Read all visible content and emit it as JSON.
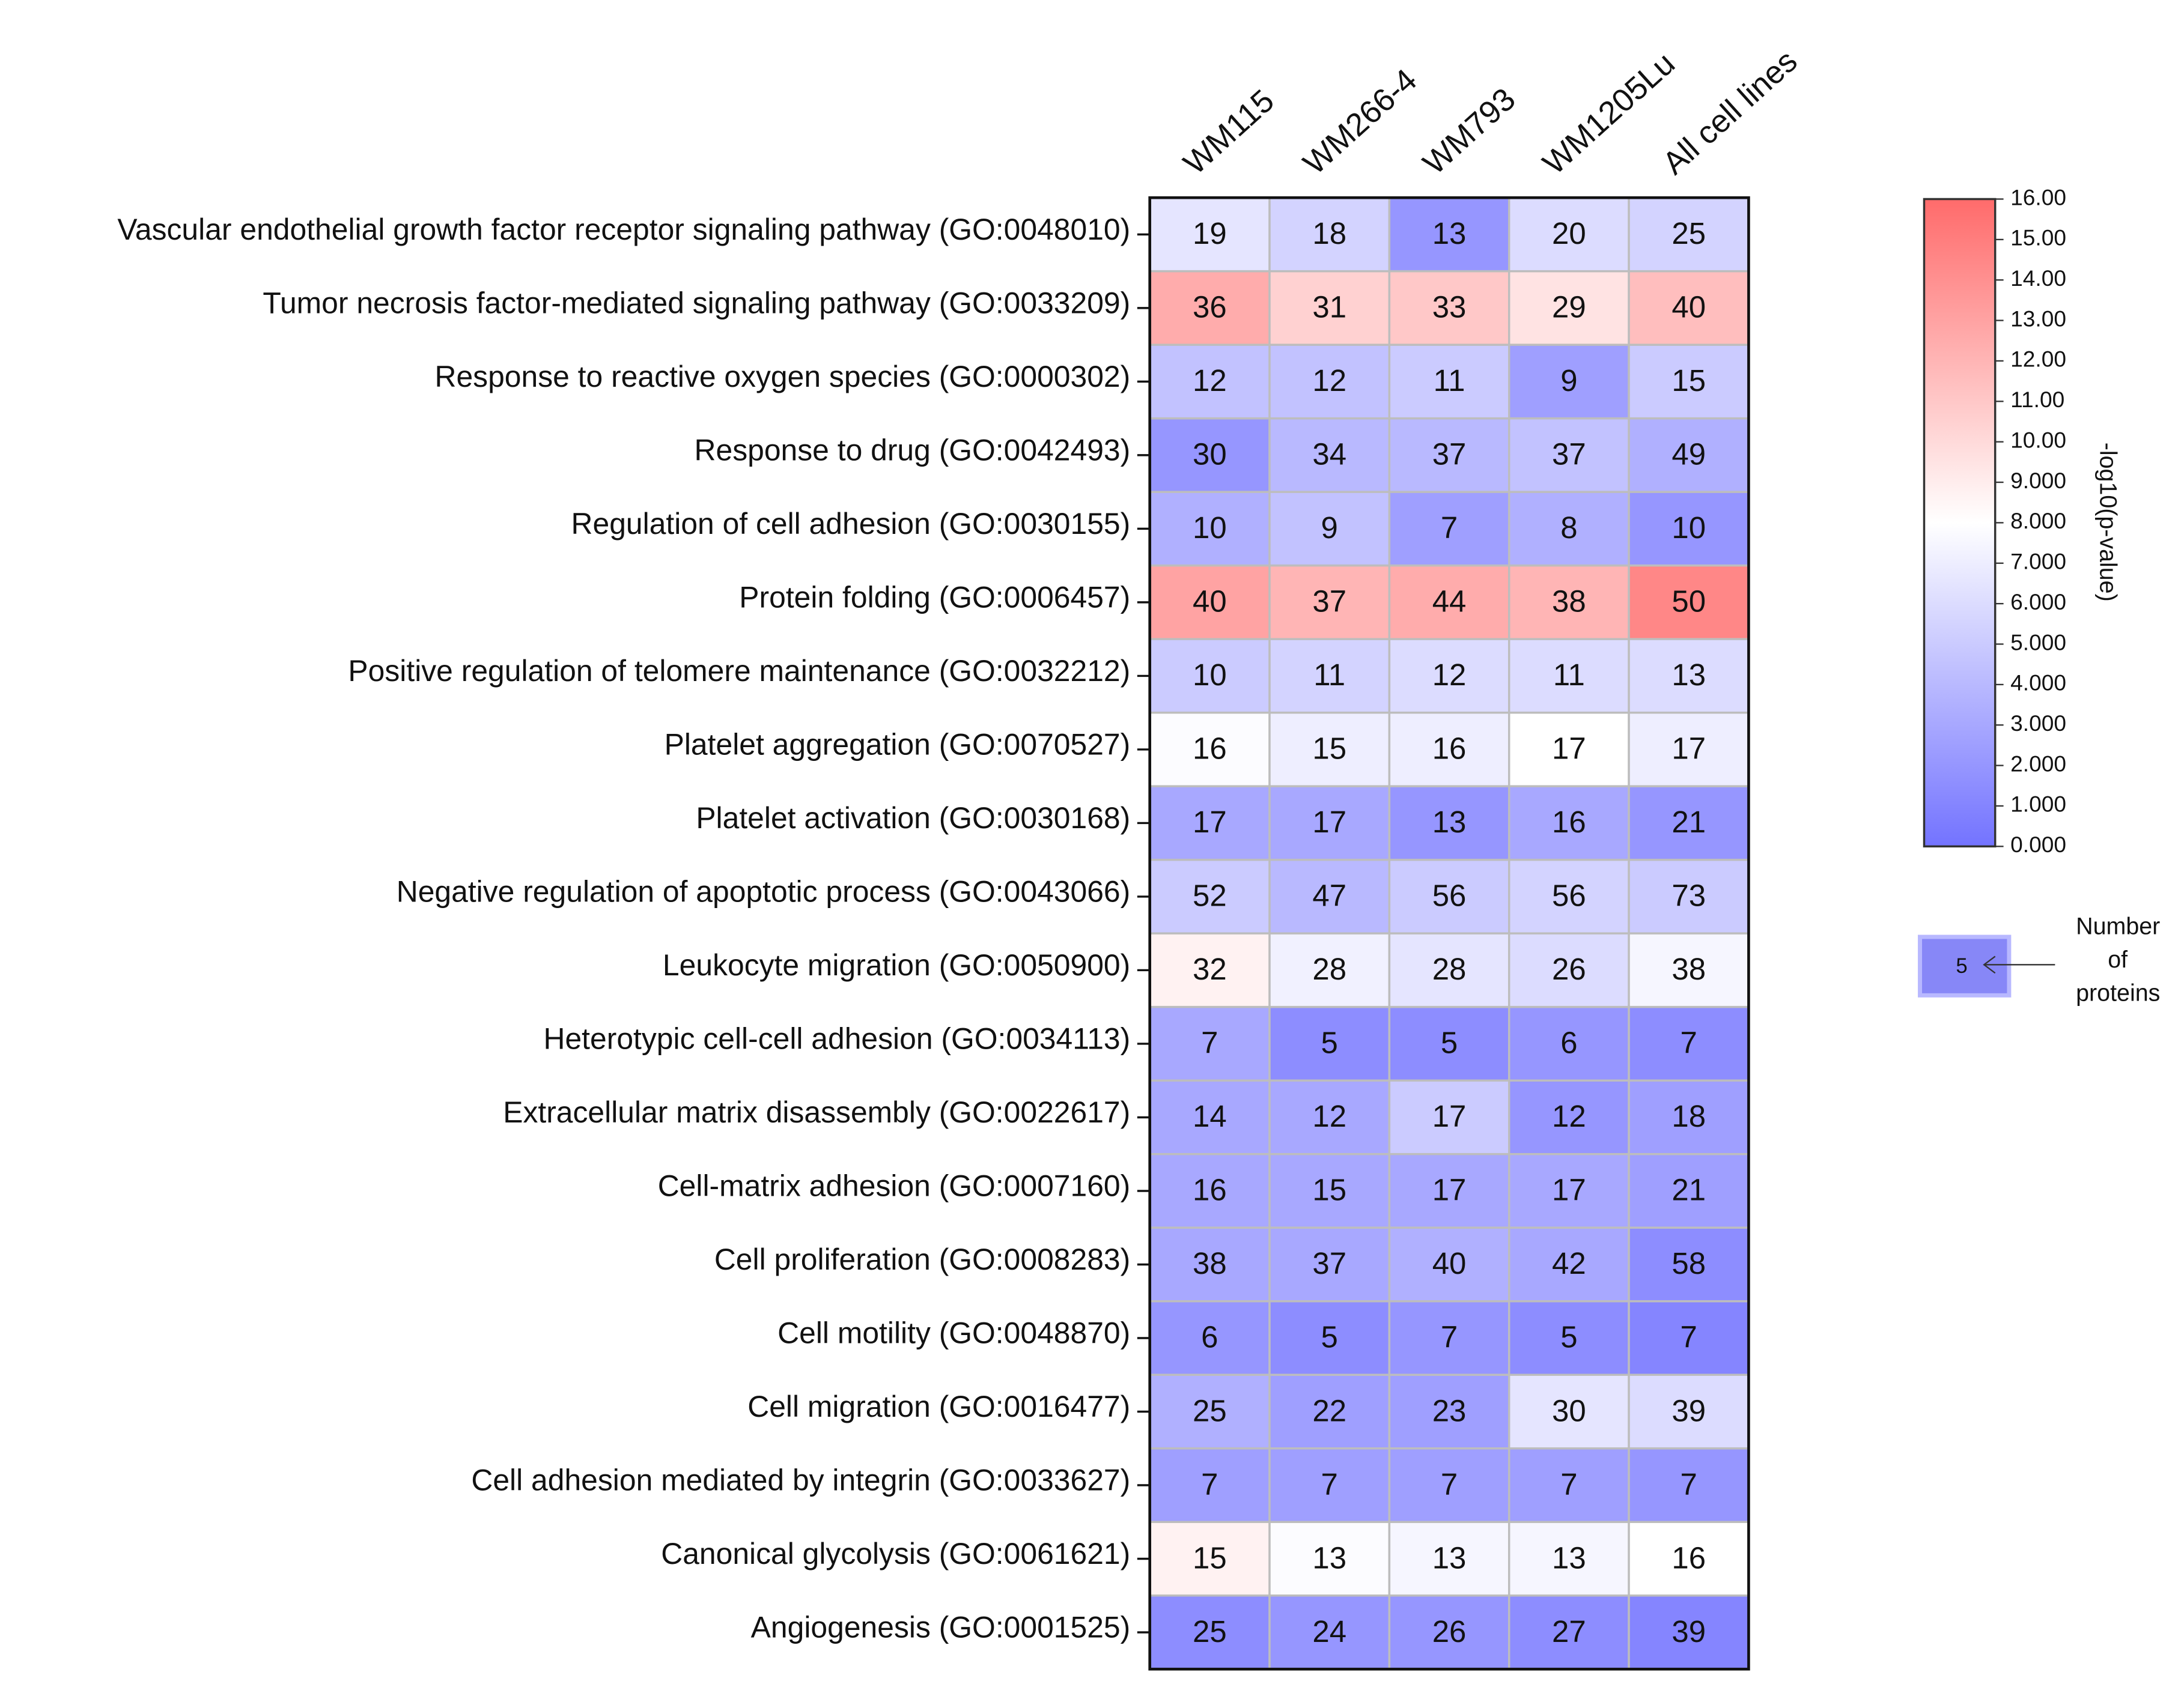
{
  "chart_data": {
    "type": "heatmap",
    "columns": [
      "WM115",
      "WM266-4",
      "WM793",
      "WM1205Lu",
      "All cell lines"
    ],
    "rows": [
      "Vascular endothelial growth factor receptor signaling pathway (GO:0048010)",
      "Tumor necrosis factor-mediated signaling pathway (GO:0033209)",
      "Response to reactive oxygen species (GO:0000302)",
      "Response to drug (GO:0042493)",
      "Regulation of cell adhesion (GO:0030155)",
      "Protein folding (GO:0006457)",
      "Positive regulation of telomere maintenance (GO:0032212)",
      "Platelet aggregation (GO:0070527)",
      "Platelet activation (GO:0030168)",
      "Negative regulation of apoptotic process (GO:0043066)",
      "Leukocyte migration (GO:0050900)",
      "Heterotypic cell-cell adhesion (GO:0034113)",
      "Extracellular matrix disassembly (GO:0022617)",
      "Cell-matrix adhesion (GO:0007160)",
      "Cell proliferation (GO:0008283)",
      "Cell motility (GO:0048870)",
      "Cell migration (GO:0016477)",
      "Cell adhesion mediated by integrin (GO:0033627)",
      "Canonical glycolysis (GO:0061621)",
      "Angiogenesis (GO:0001525)"
    ],
    "values": [
      [
        6.5,
        5.5,
        2,
        6,
        5.5
      ],
      [
        12.5,
        10.5,
        11,
        9.5,
        11.5
      ],
      [
        4.5,
        4.5,
        5,
        2.5,
        5
      ],
      [
        2,
        4,
        4,
        4.5,
        3.5
      ],
      [
        3.5,
        4.5,
        2.5,
        3.5,
        2
      ],
      [
        13,
        12,
        12.5,
        12,
        14.5
      ],
      [
        5,
        5.5,
        6,
        6,
        6
      ],
      [
        7.8,
        7,
        7,
        8,
        7
      ],
      [
        3,
        3,
        2,
        3,
        2
      ],
      [
        5,
        4,
        5,
        5.5,
        5
      ],
      [
        8.7,
        7.2,
        6.5,
        6,
        7.5
      ],
      [
        3,
        1.5,
        1.5,
        2,
        1.5
      ],
      [
        3,
        3,
        5,
        2,
        2.5
      ],
      [
        3,
        3,
        3,
        3,
        2.5
      ],
      [
        3,
        3,
        3.5,
        3,
        1.5
      ],
      [
        2,
        1.5,
        2,
        1.5,
        1
      ],
      [
        3.5,
        2.5,
        2.5,
        6.5,
        6
      ],
      [
        2.5,
        2.5,
        2.5,
        2.5,
        2
      ],
      [
        8.7,
        7.8,
        7.5,
        7.5,
        8
      ],
      [
        1.5,
        2,
        2,
        1.5,
        1
      ]
    ],
    "counts": [
      [
        19,
        18,
        13,
        20,
        25
      ],
      [
        36,
        31,
        33,
        29,
        40
      ],
      [
        12,
        12,
        11,
        9,
        15
      ],
      [
        30,
        34,
        37,
        37,
        49
      ],
      [
        10,
        9,
        7,
        8,
        10
      ],
      [
        40,
        37,
        44,
        38,
        50
      ],
      [
        10,
        11,
        12,
        11,
        13
      ],
      [
        16,
        15,
        16,
        17,
        17
      ],
      [
        17,
        17,
        13,
        16,
        21
      ],
      [
        52,
        47,
        56,
        56,
        73
      ],
      [
        32,
        28,
        28,
        26,
        38
      ],
      [
        7,
        5,
        5,
        6,
        7
      ],
      [
        14,
        12,
        17,
        12,
        18
      ],
      [
        16,
        15,
        17,
        17,
        21
      ],
      [
        38,
        37,
        40,
        42,
        58
      ],
      [
        6,
        5,
        7,
        5,
        7
      ],
      [
        25,
        22,
        23,
        30,
        39
      ],
      [
        7,
        7,
        7,
        7,
        7
      ],
      [
        15,
        13,
        13,
        13,
        16
      ],
      [
        25,
        24,
        26,
        27,
        39
      ]
    ],
    "colormap": [
      "#7373ff",
      "#ffffff",
      "#ff6b6b"
    ],
    "clim": [
      0,
      16
    ],
    "cticks": [
      {
        "value": 0,
        "label": "0.000"
      },
      {
        "value": 1,
        "label": "1.000"
      },
      {
        "value": 2,
        "label": "2.000"
      },
      {
        "value": 3,
        "label": "3.000"
      },
      {
        "value": 4,
        "label": "4.000"
      },
      {
        "value": 5,
        "label": "5.000"
      },
      {
        "value": 6,
        "label": "6.000"
      },
      {
        "value": 7,
        "label": "7.000"
      },
      {
        "value": 8,
        "label": "8.000"
      },
      {
        "value": 9,
        "label": "9.000"
      },
      {
        "value": 10,
        "label": "10.00"
      },
      {
        "value": 11,
        "label": "11.00"
      },
      {
        "value": 12,
        "label": "12.00"
      },
      {
        "value": 13,
        "label": "13.00"
      },
      {
        "value": 14,
        "label": "14.00"
      },
      {
        "value": 15,
        "label": "15.00"
      },
      {
        "value": 16,
        "label": "16.00"
      }
    ],
    "colorbar_label": "-log10(p-value)",
    "legend": {
      "example": 5,
      "title": "Number of proteins"
    }
  }
}
